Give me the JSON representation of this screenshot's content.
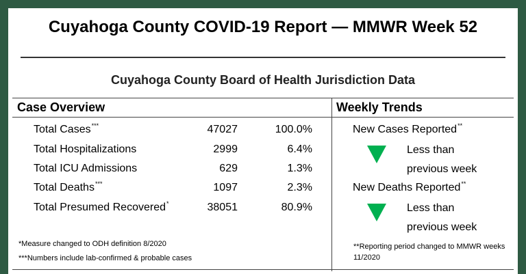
{
  "title": "Cuyahoga County COVID-19 Report — MMWR Week 52",
  "subtitle": "Cuyahoga County Board of Health Jurisdiction Data",
  "case_overview": {
    "heading": "Case Overview",
    "rows": [
      {
        "label": "Total Cases",
        "mark": "***",
        "value": "47027",
        "pct": "100.0%"
      },
      {
        "label": "Total Hospitalizations",
        "mark": "",
        "value": "2999",
        "pct": "6.4%"
      },
      {
        "label": "Total ICU Admissions",
        "mark": "",
        "value": "629",
        "pct": "1.3%"
      },
      {
        "label": "Total Deaths",
        "mark": "***",
        "value": "1097",
        "pct": "2.3%"
      },
      {
        "label": "Total Presumed Recovered",
        "mark": "*",
        "value": "38051",
        "pct": "80.9%"
      }
    ],
    "footnotes": [
      {
        "mark": "*",
        "text": "Measure changed to ODH  definition 8/2020"
      },
      {
        "mark": "***",
        "text": "Numbers include lab-confirmed & probable cases"
      }
    ]
  },
  "weekly_trends": {
    "heading": "Weekly Trends",
    "items": [
      {
        "label": "New Cases Reported",
        "mark": "**",
        "direction": "down",
        "line1": "Less than",
        "line2": "previous week"
      },
      {
        "label": "New Deaths Reported",
        "mark": "**",
        "direction": "down",
        "line1": "Less than",
        "line2": "previous week"
      }
    ],
    "footnote": {
      "mark": "**",
      "text": "Reporting period changed to MMWR weeks 11/2020"
    }
  },
  "colors": {
    "border": "#2e5a43",
    "down_arrow": "#00b050"
  }
}
